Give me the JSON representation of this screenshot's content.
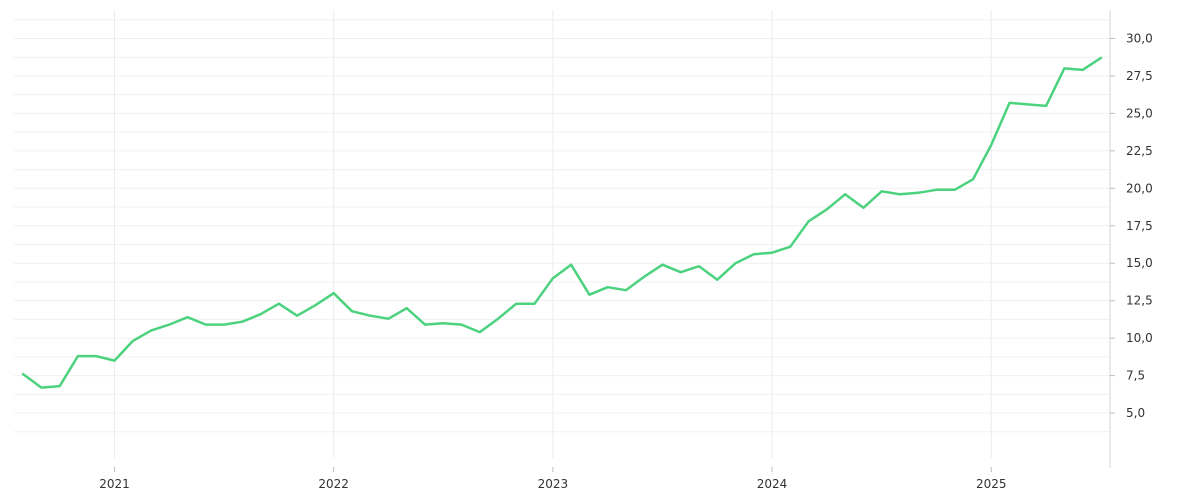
{
  "chart_data": {
    "type": "line",
    "x_tick_labels": [
      "2021",
      "2022",
      "2023",
      "2024",
      "2025"
    ],
    "y_tick_labels": [
      "5,0",
      "7,5",
      "10,0",
      "12,5",
      "15,0",
      "17,5",
      "20,0",
      "22,5",
      "25,0",
      "27,5",
      "30,0"
    ],
    "y_ticks": [
      5,
      7.5,
      10,
      12.5,
      15,
      17.5,
      20,
      22.5,
      25,
      27.5,
      30
    ],
    "ylim": [
      2.0,
      31.9
    ],
    "xlim": [
      "2020-08",
      "2025-07"
    ],
    "y_axis_position": "right",
    "grid": true,
    "series": [
      {
        "color": "#4cd27e",
        "x": [
          "2020-08",
          "2020-09",
          "2020-10",
          "2020-11",
          "2020-12",
          "2021-01",
          "2021-02",
          "2021-03",
          "2021-04",
          "2021-05",
          "2021-06",
          "2021-07",
          "2021-08",
          "2021-09",
          "2021-10",
          "2021-11",
          "2021-12",
          "2022-01",
          "2022-02",
          "2022-03",
          "2022-04",
          "2022-05",
          "2022-06",
          "2022-07",
          "2022-08",
          "2022-09",
          "2022-10",
          "2022-11",
          "2022-12",
          "2023-01",
          "2023-02",
          "2023-03",
          "2023-04",
          "2023-05",
          "2023-06",
          "2023-07",
          "2023-08",
          "2023-09",
          "2023-10",
          "2023-11",
          "2023-12",
          "2024-01",
          "2024-02",
          "2024-03",
          "2024-04",
          "2024-05",
          "2024-06",
          "2024-07",
          "2024-08",
          "2024-09",
          "2024-10",
          "2024-11",
          "2024-12",
          "2025-01",
          "2025-02",
          "2025-03",
          "2025-04",
          "2025-05",
          "2025-06",
          "2025-07"
        ],
        "y": [
          7.6,
          6.7,
          6.8,
          8.8,
          8.8,
          8.5,
          9.8,
          10.5,
          10.9,
          11.4,
          10.9,
          10.9,
          11.1,
          11.6,
          12.3,
          11.5,
          12.2,
          13.0,
          11.8,
          11.5,
          11.3,
          12.0,
          10.9,
          11.0,
          10.9,
          10.4,
          11.3,
          12.3,
          12.3,
          14.0,
          14.9,
          12.9,
          13.4,
          13.2,
          14.1,
          14.9,
          14.4,
          14.8,
          13.9,
          15.0,
          15.6,
          15.7,
          16.1,
          17.8,
          18.6,
          19.6,
          18.7,
          19.8,
          19.6,
          19.7,
          19.9,
          19.9,
          20.6,
          22.9,
          25.7,
          25.6,
          25.5,
          28.0,
          27.9,
          28.7
        ]
      }
    ]
  }
}
